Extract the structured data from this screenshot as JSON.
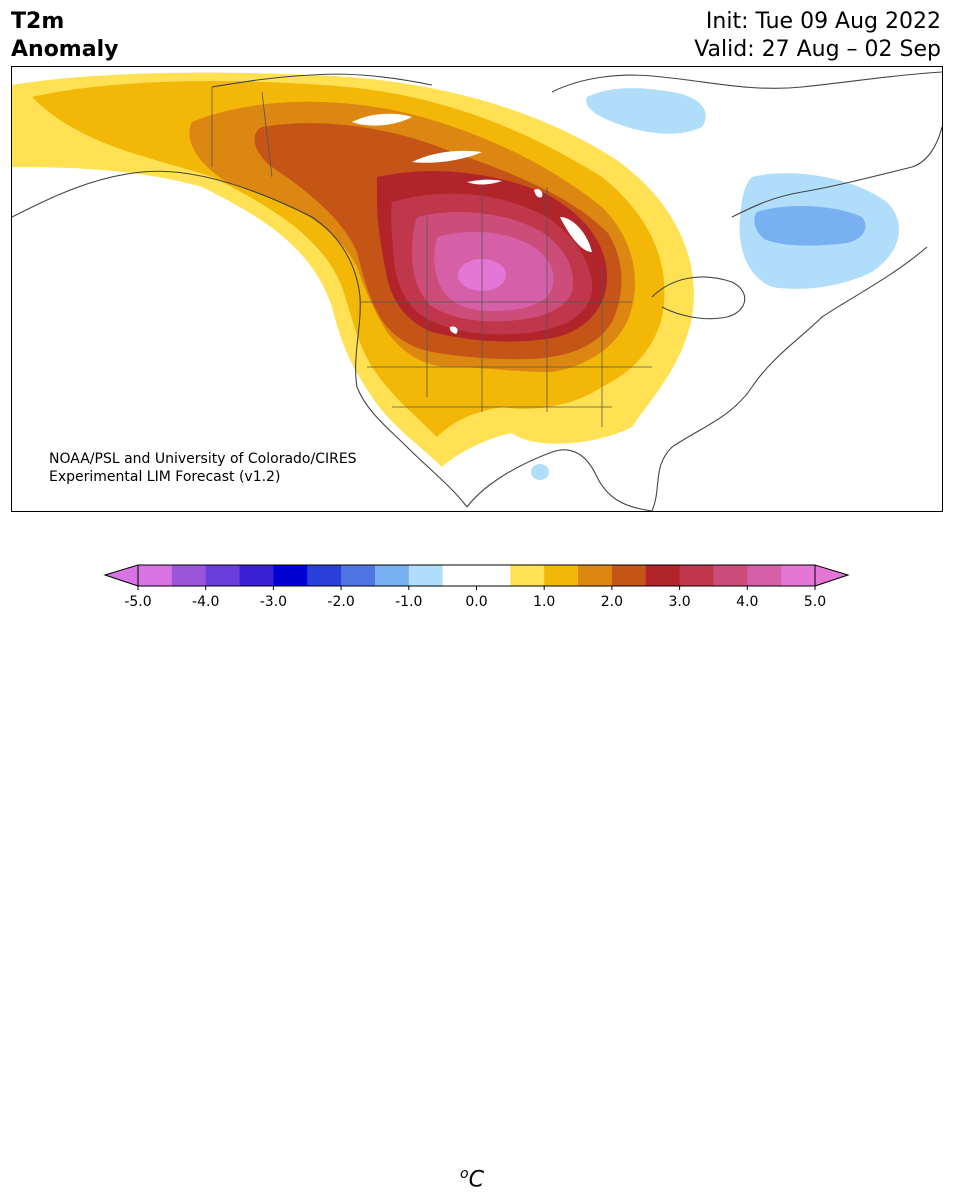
{
  "header": {
    "title_line1": "T2m",
    "title_line2": "Anomaly",
    "init_text": "Init: Tue 09 Aug 2022",
    "valid_text": "Valid: 27 Aug – 02 Sep"
  },
  "map": {
    "credit_line1": "NOAA/PSL and University of Colorado/CIRES",
    "credit_line2": "Experimental LIM Forecast (v1.2)"
  },
  "colorbar": {
    "unit_prefix": "o",
    "unit_main": "C",
    "tick_labels": [
      "-5.0",
      "-4.0",
      "-3.0",
      "-2.0",
      "-1.0",
      "0.0",
      "1.0",
      "2.0",
      "3.0",
      "4.0",
      "5.0"
    ],
    "colors": [
      "#d873e6",
      "#9a55db",
      "#6b3ddc",
      "#3a1fd6",
      "#0000d2",
      "#2a3fd9",
      "#4f75e3",
      "#78b0f2",
      "#b0defa",
      "#ffffff",
      "#ffffff",
      "#ffe153",
      "#f2b707",
      "#dd8713",
      "#c55417",
      "#b0242a",
      "#c0364a",
      "#cc4d79",
      "#d660a8",
      "#e476d6"
    ]
  },
  "legend": {
    "anomaly_colors": {
      "plus_0_5": "#ffe153",
      "plus_1_0": "#f2b707",
      "plus_1_5": "#dd8713",
      "plus_2_0": "#c55417",
      "plus_2_5": "#b0242a",
      "plus_3_0": "#c0364a",
      "plus_3_5": "#cc4d79",
      "plus_4_0": "#d660a8",
      "plus_4_5": "#e476d6",
      "minus_0_5": "#b0defa",
      "minus_1_0": "#78b0f2"
    }
  }
}
